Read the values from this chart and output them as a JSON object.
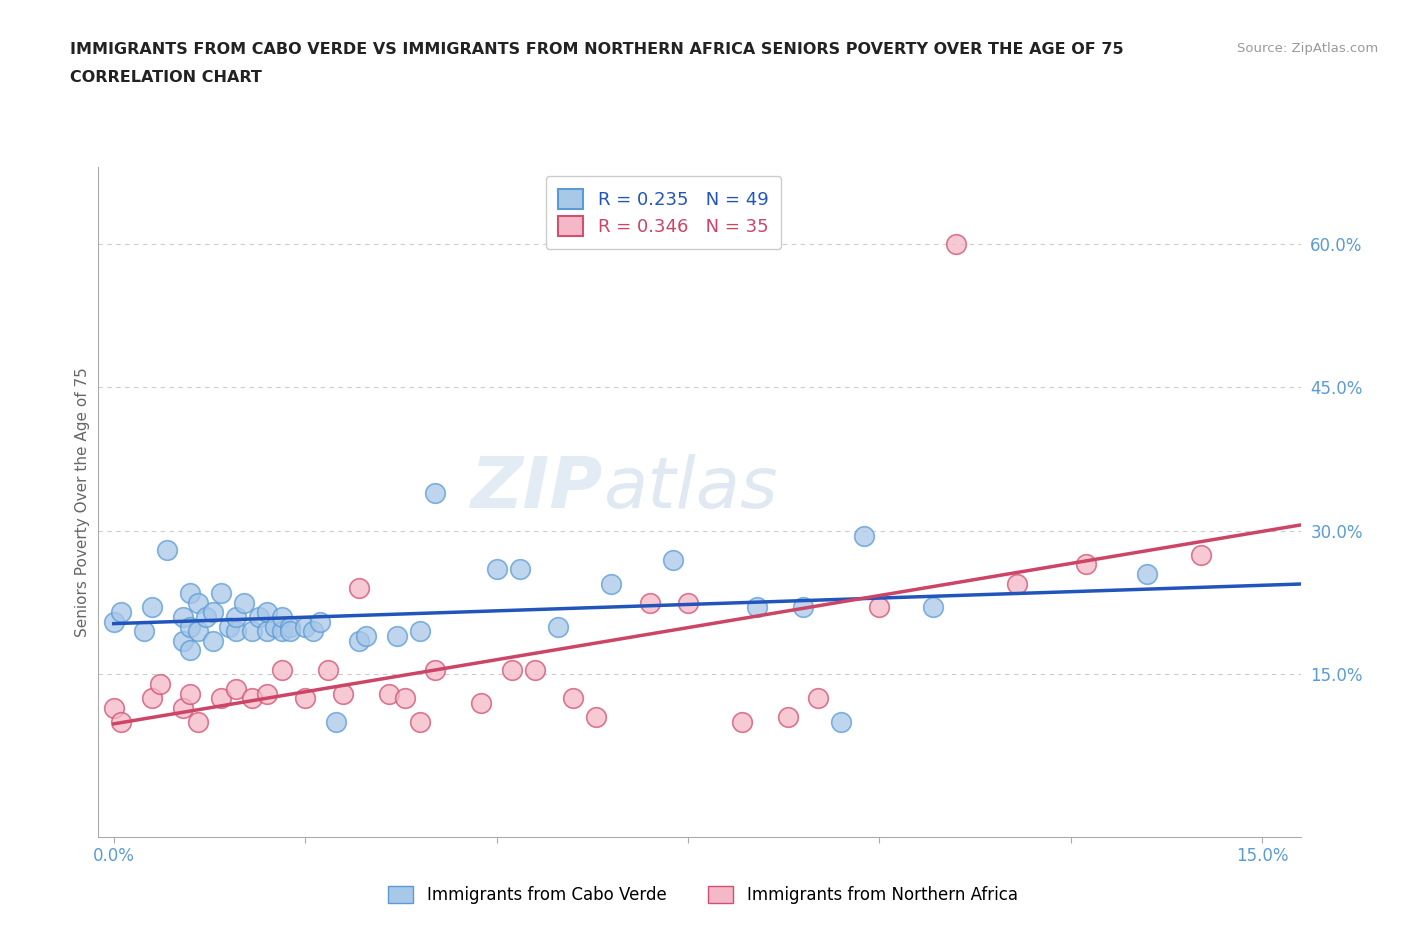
{
  "title_line1": "IMMIGRANTS FROM CABO VERDE VS IMMIGRANTS FROM NORTHERN AFRICA SENIORS POVERTY OVER THE AGE OF 75",
  "title_line2": "CORRELATION CHART",
  "source_text": "Source: ZipAtlas.com",
  "ylabel": "Seniors Poverty Over the Age of 75",
  "xlim": [
    -0.002,
    0.155
  ],
  "ylim": [
    -0.02,
    0.68
  ],
  "x_ticks": [
    0.0,
    0.025,
    0.05,
    0.075,
    0.1,
    0.125,
    0.15
  ],
  "x_tick_labels": [
    "0.0%",
    "",
    "",
    "",
    "",
    "",
    "15.0%"
  ],
  "y_ticks_right": [
    0.15,
    0.3,
    0.45,
    0.6
  ],
  "y_tick_labels_right": [
    "15.0%",
    "30.0%",
    "45.0%",
    "60.0%"
  ],
  "cabo_verde_color": "#a8c8e8",
  "cabo_verde_edge": "#5b9bd5",
  "northern_africa_color": "#f4b8c8",
  "northern_africa_edge": "#d05070",
  "cabo_verde_R": 0.235,
  "cabo_verde_N": 49,
  "northern_africa_R": 0.346,
  "northern_africa_N": 35,
  "cabo_verde_line_color": "#2255bb",
  "northern_africa_line_color": "#cc4466",
  "watermark_zip": "ZIP",
  "watermark_atlas": "atlas",
  "cabo_verde_x": [
    0.0,
    0.001,
    0.004,
    0.005,
    0.007,
    0.009,
    0.009,
    0.01,
    0.01,
    0.01,
    0.011,
    0.011,
    0.012,
    0.013,
    0.013,
    0.014,
    0.015,
    0.016,
    0.016,
    0.017,
    0.018,
    0.019,
    0.02,
    0.02,
    0.021,
    0.022,
    0.022,
    0.023,
    0.023,
    0.025,
    0.026,
    0.027,
    0.029,
    0.032,
    0.033,
    0.037,
    0.04,
    0.042,
    0.05,
    0.053,
    0.058,
    0.065,
    0.073,
    0.084,
    0.09,
    0.095,
    0.098,
    0.107,
    0.135
  ],
  "cabo_verde_y": [
    0.205,
    0.215,
    0.195,
    0.22,
    0.28,
    0.185,
    0.21,
    0.175,
    0.2,
    0.235,
    0.195,
    0.225,
    0.21,
    0.185,
    0.215,
    0.235,
    0.2,
    0.195,
    0.21,
    0.225,
    0.195,
    0.21,
    0.195,
    0.215,
    0.2,
    0.195,
    0.21,
    0.2,
    0.195,
    0.2,
    0.195,
    0.205,
    0.1,
    0.185,
    0.19,
    0.19,
    0.195,
    0.34,
    0.26,
    0.26,
    0.2,
    0.245,
    0.27,
    0.22,
    0.22,
    0.1,
    0.295,
    0.22,
    0.255
  ],
  "northern_africa_x": [
    0.0,
    0.001,
    0.005,
    0.006,
    0.009,
    0.01,
    0.011,
    0.014,
    0.016,
    0.018,
    0.02,
    0.022,
    0.025,
    0.028,
    0.03,
    0.032,
    0.036,
    0.038,
    0.04,
    0.042,
    0.048,
    0.052,
    0.055,
    0.06,
    0.063,
    0.07,
    0.075,
    0.082,
    0.088,
    0.092,
    0.1,
    0.11,
    0.118,
    0.127,
    0.142
  ],
  "northern_africa_y": [
    0.115,
    0.1,
    0.125,
    0.14,
    0.115,
    0.13,
    0.1,
    0.125,
    0.135,
    0.125,
    0.13,
    0.155,
    0.125,
    0.155,
    0.13,
    0.24,
    0.13,
    0.125,
    0.1,
    0.155,
    0.12,
    0.155,
    0.155,
    0.125,
    0.105,
    0.225,
    0.225,
    0.1,
    0.105,
    0.125,
    0.22,
    0.6,
    0.245,
    0.265,
    0.275
  ]
}
